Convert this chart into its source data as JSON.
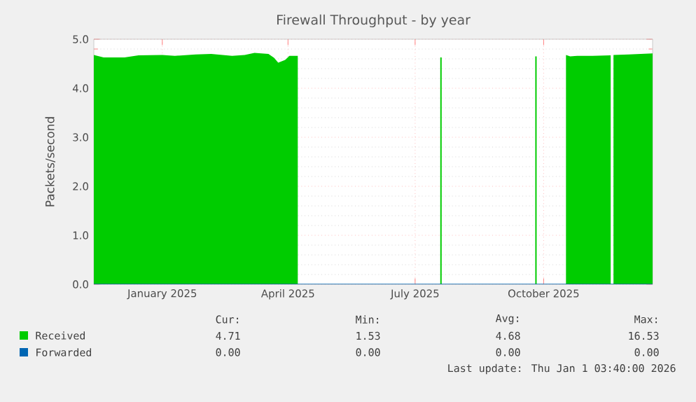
{
  "chart_data": {
    "type": "area",
    "title": "Firewall Throughput - by year",
    "ylabel": "Packets/second",
    "xlim": [
      "2024-11-13",
      "2025-12-18"
    ],
    "xticks": [
      {
        "value": "2025-01-01",
        "label": "January 2025"
      },
      {
        "value": "2025-04-01",
        "label": "April 2025"
      },
      {
        "value": "2025-07-01",
        "label": "July 2025"
      },
      {
        "value": "2025-10-01",
        "label": "October 2025"
      }
    ],
    "ylim": [
      0,
      5
    ],
    "yticks": [
      {
        "value": 0,
        "label": "0.0"
      },
      {
        "value": 1,
        "label": "1.0"
      },
      {
        "value": 2,
        "label": "2.0"
      },
      {
        "value": 3,
        "label": "3.0"
      },
      {
        "value": 4,
        "label": "4.0"
      },
      {
        "value": 5,
        "label": "5.0"
      }
    ],
    "grid": true,
    "legend": "bottom left",
    "series": [
      {
        "name": "Received",
        "color": "#00cc00",
        "x": [
          "2024-11-13",
          "2024-11-20",
          "2024-12-05",
          "2024-12-15",
          "2025-01-01",
          "2025-01-10",
          "2025-01-25",
          "2025-02-05",
          "2025-02-20",
          "2025-03-01",
          "2025-03-08",
          "2025-03-18",
          "2025-03-22",
          "2025-03-25",
          "2025-03-30",
          "2025-04-02",
          "2025-04-08",
          "2025-04-09",
          "2025-07-19",
          "2025-07-20",
          "2025-07-21",
          "2025-09-25",
          "2025-09-26",
          "2025-09-27",
          "2025-10-17",
          "2025-10-20",
          "2025-10-25",
          "2025-11-05",
          "2025-11-18",
          "2025-11-19",
          "2025-11-20",
          "2025-12-01",
          "2025-12-18"
        ],
        "values": [
          4.68,
          4.63,
          4.63,
          4.67,
          4.68,
          4.66,
          4.69,
          4.7,
          4.66,
          4.68,
          4.72,
          4.7,
          4.62,
          4.52,
          4.58,
          4.66,
          4.66,
          null,
          4.63,
          4.63,
          null,
          4.65,
          4.65,
          null,
          4.68,
          4.65,
          4.66,
          4.66,
          4.67,
          null,
          4.68,
          4.69,
          4.71
        ]
      },
      {
        "name": "Forwarded",
        "color": "#0066b3",
        "type": "line",
        "x": [
          "2024-11-13",
          "2025-12-18"
        ],
        "values": [
          0,
          0
        ]
      }
    ],
    "annotations": [
      "Cur:",
      "Min:",
      "Avg:",
      "Max:",
      "4.71",
      "1.53",
      "4.68",
      "16.53",
      "0.00",
      "0.00",
      "0.00",
      "0.00",
      "Last update: Thu Jan  1 03:40:00 2026"
    ]
  }
}
